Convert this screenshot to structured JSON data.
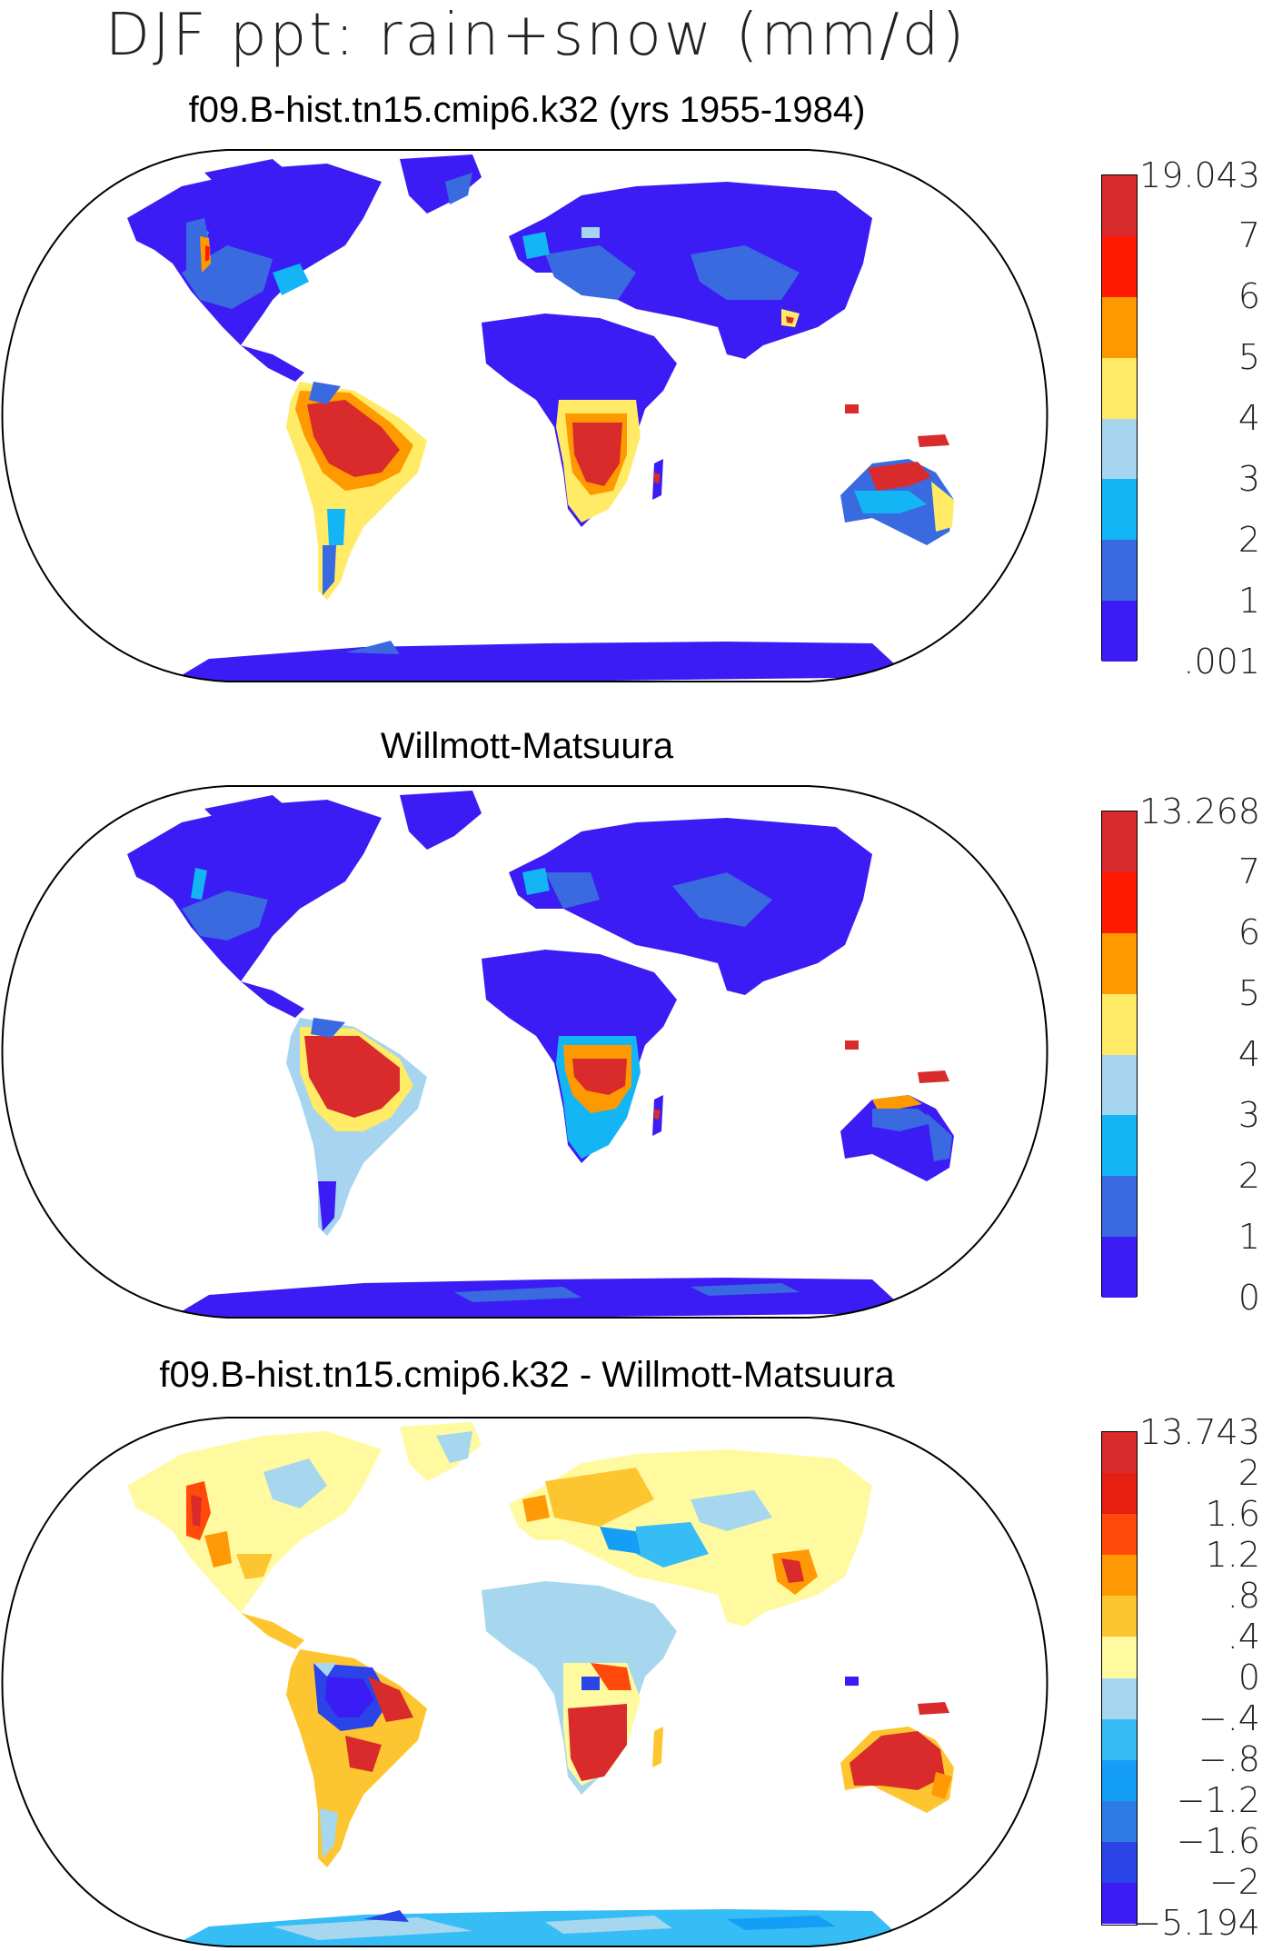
{
  "title": "DJF ppt: rain+snow (mm/d)",
  "panels": [
    {
      "title": "f09.B-hist.tn15.cmip6.k32 (yrs 1955-1984)",
      "colorbar": {
        "labels": [
          "19.043",
          "7",
          "6",
          "5",
          "4",
          "3",
          "2",
          "1",
          ".001"
        ],
        "colors": [
          "#d92b2b",
          "#ff1a00",
          "#ff9900",
          "#ffeb66",
          "#a7d5ef",
          "#14b5f5",
          "#3a6adf",
          "#3b1cf4"
        ]
      }
    },
    {
      "title": "Willmott-Matsuura",
      "colorbar": {
        "labels": [
          "13.268",
          "7",
          "6",
          "5",
          "4",
          "3",
          "2",
          "1",
          "0"
        ],
        "colors": [
          "#d92b2b",
          "#ff1a00",
          "#ff9900",
          "#ffeb66",
          "#a7d5ef",
          "#14b5f5",
          "#3a6adf",
          "#3b1cf4"
        ]
      }
    },
    {
      "title": "f09.B-hist.tn15.cmip6.k32 - Willmott-Matsuura",
      "colorbar": {
        "labels": [
          "13.743",
          "2",
          "1.6",
          "1.2",
          ".8",
          ".4",
          "0",
          "−.4",
          "−.8",
          "−1.2",
          "−1.6",
          "−2",
          "−5.194"
        ],
        "colors": [
          "#d92b2b",
          "#e61f10",
          "#ff4a0c",
          "#ff9905",
          "#fdc630",
          "#fffaa0",
          "#a7d7ee",
          "#37bdf5",
          "#149ef6",
          "#2e7ce3",
          "#2a44e8",
          "#3b1cf4"
        ]
      }
    }
  ]
}
